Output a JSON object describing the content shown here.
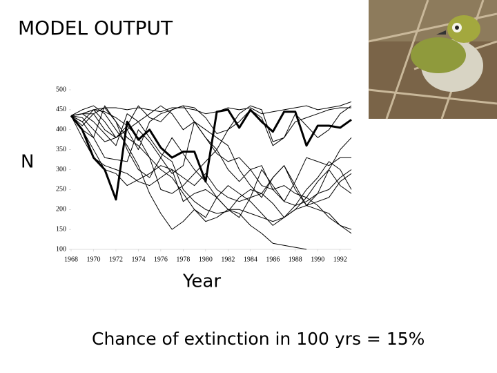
{
  "chart_data": {
    "type": "line",
    "title": "MODEL OUTPUT",
    "xlabel": "Year",
    "ylabel": "N",
    "annotation": "Chance of extinction in 100 yrs = 15%",
    "x": [
      1968,
      1969,
      1970,
      1971,
      1972,
      1973,
      1974,
      1975,
      1976,
      1977,
      1978,
      1979,
      1980,
      1981,
      1982,
      1983,
      1984,
      1985,
      1986,
      1987,
      1988,
      1989,
      1990,
      1991,
      1992,
      1993
    ],
    "xlim": [
      1968,
      1993
    ],
    "xticks": [
      1968,
      1970,
      1972,
      1974,
      1976,
      1978,
      1980,
      1982,
      1984,
      1986,
      1988,
      1990,
      1992
    ],
    "ylim": [
      100,
      500
    ],
    "yticks": [
      100,
      150,
      200,
      250,
      300,
      350,
      400,
      450,
      500
    ],
    "series": [
      {
        "color": "#000000",
        "line_width": 1,
        "values": [
          435,
          440,
          450,
          455,
          455,
          450,
          455,
          450,
          445,
          455,
          455,
          450,
          440,
          445,
          455,
          450,
          455,
          440,
          445,
          450,
          455,
          460,
          450,
          455,
          460,
          470
        ]
      },
      {
        "color": "#000000",
        "line_width": 1,
        "values": [
          435,
          420,
          380,
          330,
          325,
          320,
          400,
          370,
          330,
          290,
          310,
          420,
          400,
          380,
          360,
          300,
          260,
          230,
          280,
          310,
          250,
          210,
          240,
          300,
          350,
          380
        ]
      },
      {
        "color": "#000000",
        "line_width": 1,
        "values": [
          435,
          380,
          330,
          310,
          300,
          290,
          270,
          260,
          280,
          300,
          220,
          240,
          250,
          230,
          200,
          200,
          190,
          180,
          170,
          180,
          200,
          210,
          200,
          190,
          160,
          140
        ]
      },
      {
        "color": "#000000",
        "line_width": 1,
        "values": [
          435,
          450,
          460,
          440,
          400,
          360,
          310,
          240,
          190,
          150,
          170,
          200,
          180,
          230,
          260,
          240,
          220,
          190,
          160,
          180,
          210,
          220,
          240,
          250,
          280,
          300
        ]
      },
      {
        "color": "#000000",
        "line_width": 1,
        "values": [
          435,
          440,
          440,
          455,
          420,
          380,
          360,
          330,
          300,
          280,
          240,
          200,
          170,
          180,
          200,
          190,
          160,
          140,
          115,
          110,
          105,
          100,
          null,
          null,
          null,
          null
        ]
      },
      {
        "color": "#000000",
        "line_width": 1,
        "values": [
          435,
          410,
          440,
          400,
          380,
          400,
          350,
          420,
          440,
          450,
          460,
          455,
          430,
          390,
          400,
          420,
          450,
          430,
          360,
          380,
          420,
          430,
          440,
          450,
          455,
          455
        ]
      },
      {
        "color": "#000000",
        "line_width": 1,
        "values": [
          435,
          400,
          380,
          460,
          420,
          350,
          300,
          280,
          330,
          380,
          340,
          300,
          270,
          230,
          200,
          180,
          230,
          300,
          260,
          220,
          210,
          250,
          280,
          320,
          300,
          250
        ]
      },
      {
        "color": "#000000",
        "line_width": 1,
        "values": [
          435,
          440,
          420,
          390,
          360,
          440,
          420,
          380,
          340,
          320,
          250,
          220,
          200,
          190,
          195,
          230,
          250,
          240,
          215,
          180,
          200,
          230,
          270,
          300,
          260,
          240
        ]
      },
      {
        "color": "#000000",
        "line_width": 1,
        "values": [
          435,
          420,
          450,
          420,
          380,
          400,
          420,
          440,
          460,
          440,
          400,
          420,
          380,
          350,
          400,
          440,
          460,
          450,
          370,
          380,
          440,
          410,
          380,
          400,
          440,
          460
        ]
      },
      {
        "color": "#000000",
        "line_width": 1,
        "values": [
          435,
          440,
          450,
          445,
          430,
          410,
          380,
          330,
          250,
          240,
          260,
          290,
          320,
          350,
          300,
          270,
          300,
          310,
          250,
          220,
          270,
          330,
          320,
          310,
          330,
          330
        ]
      },
      {
        "color": "#000000",
        "line_width": 1,
        "values": [
          435,
          400,
          350,
          300,
          290,
          260,
          275,
          290,
          310,
          300,
          280,
          260,
          290,
          250,
          230,
          220,
          230,
          240,
          280,
          310,
          260,
          210,
          220,
          230,
          270,
          290
        ]
      },
      {
        "color": "#000000",
        "line_width": 1,
        "values": [
          435,
          430,
          400,
          370,
          380,
          410,
          460,
          430,
          420,
          450,
          460,
          420,
          380,
          340,
          320,
          330,
          300,
          260,
          250,
          260,
          240,
          230,
          210,
          180,
          160,
          150
        ]
      },
      {
        "color": "#000000",
        "line_width": 3,
        "values": [
          435,
          400,
          330,
          300,
          225,
          420,
          375,
          400,
          355,
          330,
          345,
          345,
          270,
          445,
          450,
          405,
          450,
          420,
          395,
          445,
          445,
          360,
          410,
          410,
          405,
          425
        ]
      }
    ]
  }
}
